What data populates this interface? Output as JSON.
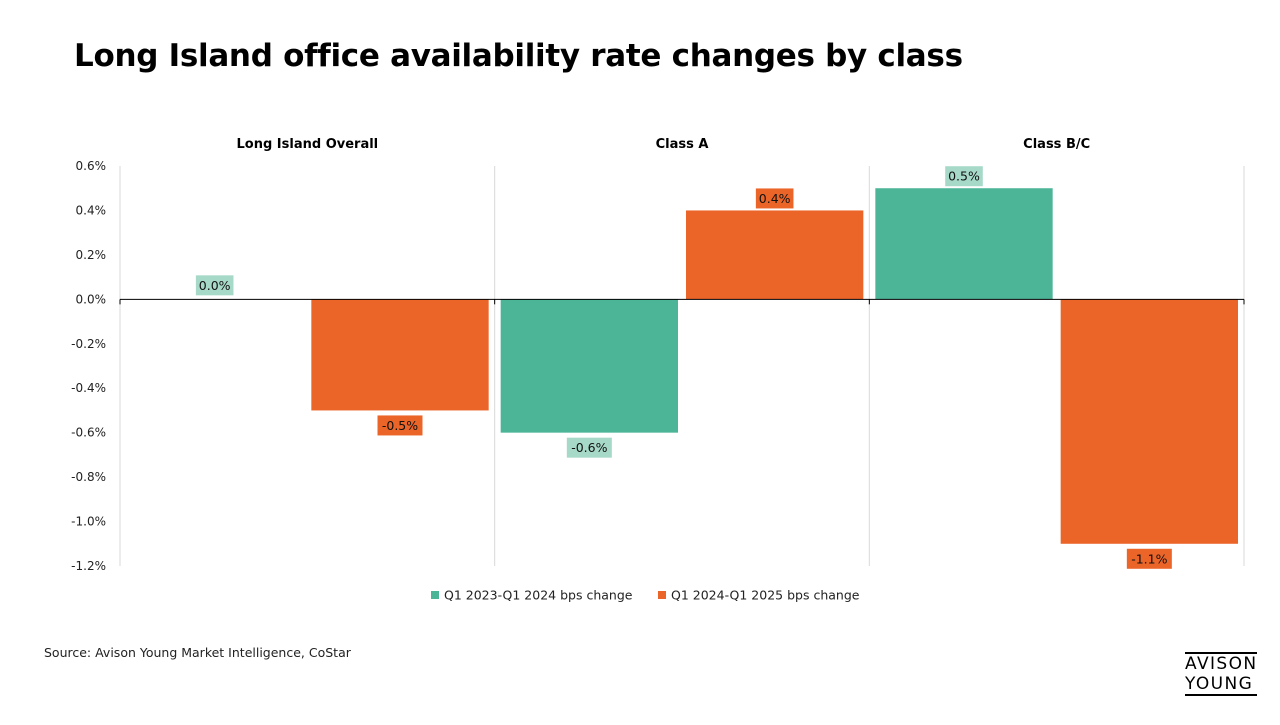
{
  "page": {
    "title": "Long Island office availability rate changes by class",
    "source": "Source: Avison Young Market Intelligence, CoStar",
    "logo_lines": [
      "AVISON",
      "YOUNG"
    ]
  },
  "colors": {
    "series1": "#4DB597",
    "series1_label_bg": "#A7D9C8",
    "series2": "#EB6428",
    "grid": "#D9D9D9",
    "axis": "#000000"
  },
  "chart_data": {
    "type": "bar",
    "title": "Long Island office availability rate changes by class",
    "panels": [
      "Long Island Overall",
      "Class A",
      "Class B/C"
    ],
    "series": [
      {
        "name": "Q1 2023-Q1 2024 bps change",
        "values": [
          0.0,
          -0.6,
          0.5
        ],
        "labels": [
          "0.0%",
          "-0.6%",
          "0.5%"
        ]
      },
      {
        "name": "Q1 2024-Q1 2025 bps change",
        "values": [
          -0.5,
          0.4,
          -1.1
        ],
        "labels": [
          "-0.5%",
          "0.4%",
          "-1.1%"
        ]
      }
    ],
    "ylim": [
      -1.2,
      0.6
    ],
    "yticks": [
      0.6,
      0.4,
      0.2,
      0.0,
      -0.2,
      -0.4,
      -0.6,
      -0.8,
      -1.0,
      -1.2
    ],
    "ytick_labels": [
      "0.6%",
      "0.4%",
      "0.2%",
      "0.0%",
      "-0.2%",
      "-0.4%",
      "-0.6%",
      "-0.8%",
      "-1.0%",
      "-1.2%"
    ],
    "xlabel": "",
    "ylabel": "",
    "legend_position": "bottom"
  }
}
